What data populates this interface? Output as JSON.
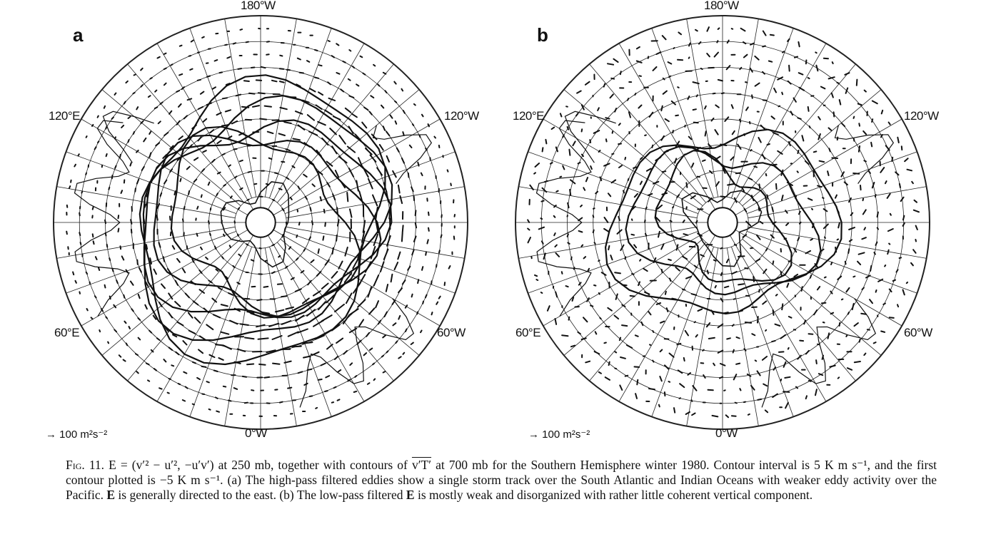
{
  "panels": [
    {
      "letter": "a",
      "labels": {
        "top": "180°W",
        "upper_left": "120°E",
        "upper_right": "120°W",
        "lower_left": "60°E",
        "lower_right": "60°W",
        "bottom": "0°W"
      },
      "scale": "→ 100 m²s⁻²"
    },
    {
      "letter": "b",
      "labels": {
        "top": "180°W",
        "upper_left": "120°E",
        "upper_right": "120°W",
        "lower_left": "60°E",
        "lower_right": "60°W",
        "bottom": "0°W"
      },
      "scale": "→ 100 m²s⁻²"
    }
  ],
  "caption": {
    "fig_label": "Fig. 11.",
    "math_E": "E = (v′² − u′², −u′v′)",
    "text_1": " at 250 mb, together with contours of ",
    "math_vT": "v′T′",
    "text_2": " at 700 mb for the Southern Hemisphere winter 1980. Contour interval is 5 K m s⁻¹, and the first contour plotted is −5 K m s⁻¹. (a) The high-pass filtered eddies show a single storm track over the South Atlantic and Indian Oceans with weaker eddy activity over the Pacific. ",
    "bold_E1": "E",
    "text_3": " is generally directed to the east. (b) The low-pass filtered ",
    "bold_E2": "E",
    "text_4": " is mostly weak and disorganized with rather little coherent vertical component."
  }
}
